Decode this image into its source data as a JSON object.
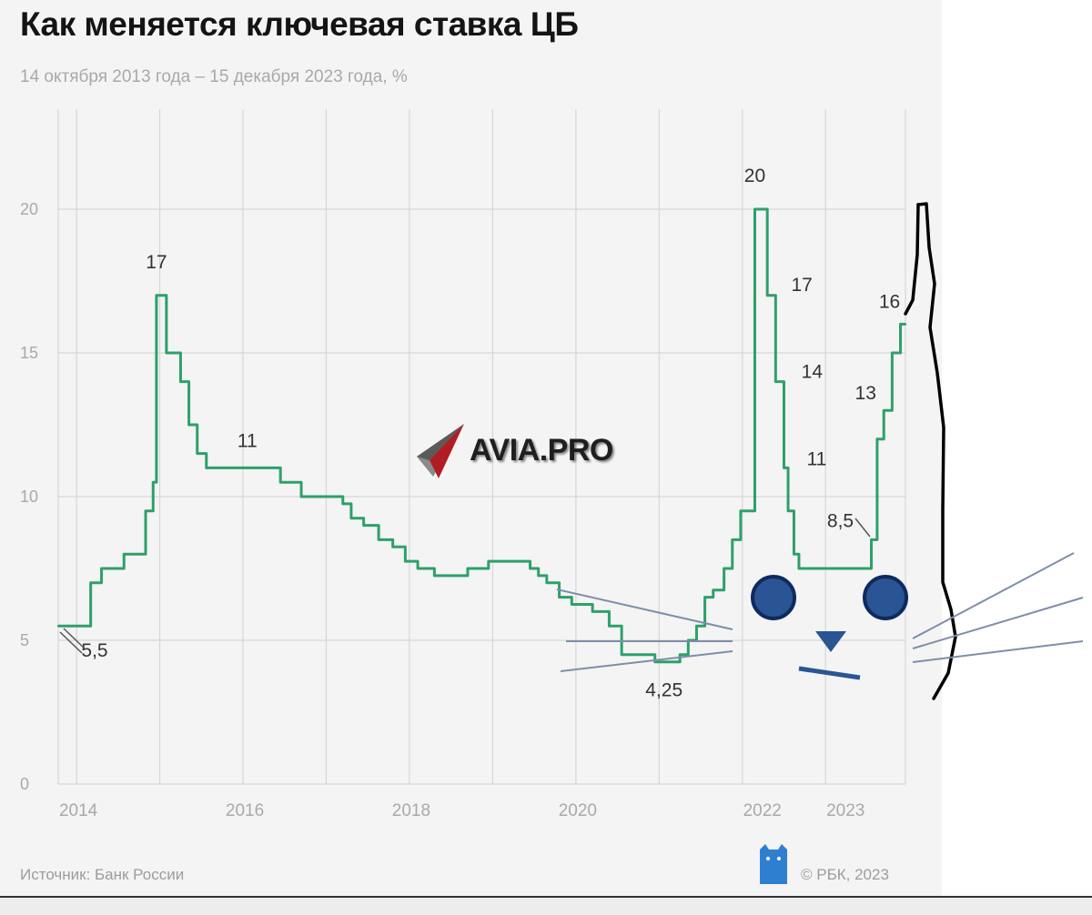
{
  "header": {
    "title": "Как меняется ключевая ставка ЦБ",
    "subtitle": "14 октября 2013 года – 15 декабря 2023 года, %"
  },
  "footer": {
    "source": "Источник: Банк России",
    "copyright": "© РБК, 2023"
  },
  "watermark": {
    "text": "AVIA.PRO"
  },
  "colors": {
    "line": "#2ea06a",
    "grid": "#d6d6d6",
    "text": "#333333",
    "tick": "#a9a9a9",
    "cat_outline": "#000000",
    "cat_face": "#2a5494",
    "whisker": "#7f8ea8"
  },
  "chart_data": {
    "type": "line",
    "step": true,
    "xlim": [
      2013.78,
      2023.96
    ],
    "ylim": [
      0,
      20
    ],
    "y_ticks": [
      0,
      5,
      10,
      15,
      20
    ],
    "x_ticks": [
      {
        "label": "2014",
        "value": 2014.0
      },
      {
        "label": "2016",
        "value": 2016.0
      },
      {
        "label": "2018",
        "value": 2018.0
      },
      {
        "label": "2020",
        "value": 2020.0
      },
      {
        "label": "2022",
        "value": 2022.0
      },
      {
        "label": "2023",
        "value": 2023.0
      }
    ],
    "grid": true,
    "series": [
      {
        "points": [
          [
            2013.78,
            5.5
          ],
          [
            2014.17,
            7.0
          ],
          [
            2014.3,
            7.5
          ],
          [
            2014.57,
            8.0
          ],
          [
            2014.83,
            9.5
          ],
          [
            2014.92,
            10.5
          ],
          [
            2014.96,
            17.0
          ],
          [
            2015.08,
            15.0
          ],
          [
            2015.25,
            14.0
          ],
          [
            2015.35,
            12.5
          ],
          [
            2015.45,
            11.5
          ],
          [
            2015.56,
            11.0
          ],
          [
            2016.45,
            10.5
          ],
          [
            2016.7,
            10.0
          ],
          [
            2017.2,
            9.75
          ],
          [
            2017.3,
            9.25
          ],
          [
            2017.45,
            9.0
          ],
          [
            2017.63,
            8.5
          ],
          [
            2017.8,
            8.25
          ],
          [
            2017.95,
            7.75
          ],
          [
            2018.1,
            7.5
          ],
          [
            2018.3,
            7.25
          ],
          [
            2018.7,
            7.5
          ],
          [
            2018.95,
            7.75
          ],
          [
            2019.45,
            7.5
          ],
          [
            2019.55,
            7.25
          ],
          [
            2019.65,
            7.0
          ],
          [
            2019.8,
            6.5
          ],
          [
            2019.95,
            6.25
          ],
          [
            2020.2,
            6.0
          ],
          [
            2020.4,
            5.5
          ],
          [
            2020.55,
            4.5
          ],
          [
            2020.95,
            4.25
          ],
          [
            2021.25,
            4.5
          ],
          [
            2021.35,
            5.0
          ],
          [
            2021.45,
            5.5
          ],
          [
            2021.55,
            6.5
          ],
          [
            2021.65,
            6.75
          ],
          [
            2021.78,
            7.5
          ],
          [
            2021.88,
            8.5
          ],
          [
            2021.98,
            9.5
          ],
          [
            2022.15,
            20.0
          ],
          [
            2022.3,
            17.0
          ],
          [
            2022.4,
            14.0
          ],
          [
            2022.5,
            11.0
          ],
          [
            2022.55,
            9.5
          ],
          [
            2022.62,
            8.0
          ],
          [
            2022.68,
            7.5
          ],
          [
            2023.55,
            8.5
          ],
          [
            2023.62,
            12.0
          ],
          [
            2023.7,
            13.0
          ],
          [
            2023.8,
            15.0
          ],
          [
            2023.9,
            16.0
          ],
          [
            2023.96,
            16.0
          ]
        ]
      }
    ],
    "annotations": [
      {
        "text": "5,5",
        "x": 2013.78,
        "y": 5.5
      },
      {
        "text": "17",
        "x": 2014.96,
        "y": 17.0
      },
      {
        "text": "11",
        "x": 2015.56,
        "y": 11.0
      },
      {
        "text": "4,25",
        "x": 2020.95,
        "y": 4.25
      },
      {
        "text": "20",
        "x": 2022.15,
        "y": 20.0
      },
      {
        "text": "17",
        "x": 2022.3,
        "y": 17.0
      },
      {
        "text": "14",
        "x": 2022.4,
        "y": 14.0
      },
      {
        "text": "11",
        "x": 2022.5,
        "y": 11.0
      },
      {
        "text": "8,5",
        "x": 2023.55,
        "y": 8.5
      },
      {
        "text": "13",
        "x": 2023.7,
        "y": 13.0
      },
      {
        "text": "16",
        "x": 2023.9,
        "y": 16.0
      }
    ]
  }
}
